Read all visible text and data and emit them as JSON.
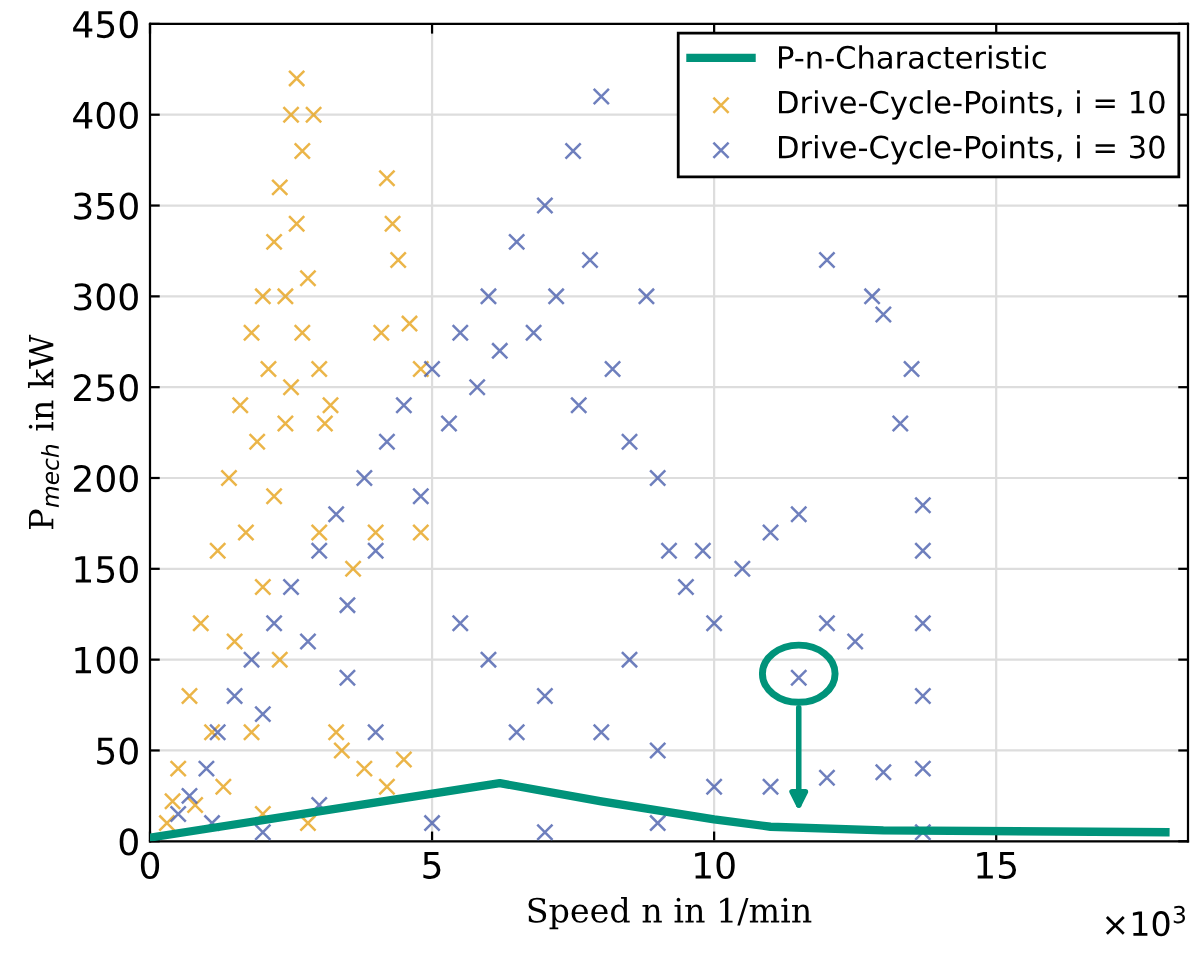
{
  "chart_data": {
    "type": "scatter",
    "xlabel": "Speed n in 1/min",
    "ylabel": "P$_{mech}$ in kW",
    "annotations": [
      "×10$^{3}$"
    ],
    "xlim": [
      0,
      18.4
    ],
    "ylim": [
      0,
      450
    ],
    "xticks": [
      0,
      5,
      10,
      15
    ],
    "yticks": [
      0,
      50,
      100,
      150,
      200,
      250,
      300,
      350,
      400,
      450
    ],
    "grid": true,
    "legend": "top right",
    "marker": "cross",
    "series": [
      {
        "name": "P-n-Characteristic",
        "type": "line",
        "color": "#00937a",
        "line_style": "solid",
        "marker": "none",
        "x": [
          0,
          6.2,
          8,
          10,
          11,
          13,
          18
        ],
        "values": [
          2,
          32,
          22,
          12,
          8,
          6,
          5
        ]
      },
      {
        "name": "Drive-Cycle-Points, i = 10",
        "color": "#e6a21a",
        "x": [
          0.3,
          0.5,
          0.7,
          0.9,
          1.1,
          1.2,
          1.4,
          1.5,
          1.6,
          1.7,
          1.8,
          1.9,
          2.0,
          2.0,
          2.1,
          2.2,
          2.2,
          2.3,
          2.4,
          2.4,
          2.5,
          2.5,
          2.6,
          2.6,
          2.7,
          2.7,
          2.8,
          2.9,
          3.0,
          3.1,
          3.2,
          2.3,
          1.8,
          1.3,
          0.8,
          0.4,
          4.2,
          4.3,
          4.4,
          4.6,
          4.8,
          4.1,
          3.4,
          3.8,
          4.2,
          4.5,
          2.0,
          2.8,
          3.3,
          4.0,
          3.6,
          3.0,
          4.8
        ],
        "values": [
          10,
          40,
          80,
          120,
          60,
          160,
          200,
          110,
          240,
          170,
          280,
          220,
          300,
          140,
          260,
          330,
          190,
          360,
          300,
          230,
          400,
          250,
          420,
          340,
          380,
          280,
          310,
          400,
          260,
          230,
          240,
          100,
          60,
          30,
          20,
          22,
          365,
          340,
          320,
          285,
          260,
          280,
          50,
          40,
          30,
          45,
          15,
          10,
          60,
          170,
          150,
          170,
          170
        ]
      },
      {
        "name": "Drive-Cycle-Points, i = 30",
        "color": "#4a5fad",
        "x": [
          0.5,
          0.7,
          1.0,
          1.2,
          1.5,
          1.8,
          2.0,
          2.2,
          2.5,
          2.8,
          3.0,
          3.3,
          3.5,
          3.8,
          4.0,
          4.2,
          4.5,
          4.8,
          5.0,
          5.3,
          5.5,
          5.8,
          6.0,
          6.2,
          6.5,
          6.8,
          7.0,
          7.2,
          7.5,
          7.8,
          8.0,
          8.2,
          8.5,
          8.8,
          9.0,
          9.2,
          9.5,
          10.0,
          10.5,
          11.0,
          11.5,
          12.0,
          12.5,
          12.8,
          13.0,
          13.3,
          13.5,
          11.5,
          12.0,
          6.0,
          7.0,
          8.0,
          9.0,
          10.0,
          11.0,
          12.0,
          13.0,
          13.7,
          13.7,
          13.7,
          13.7,
          13.7,
          13.7,
          3.0,
          5.0,
          7.0,
          9.0,
          2.0,
          1.1,
          6.5,
          4.0,
          5.5,
          8.5,
          9.8,
          7.6,
          3.5
        ],
        "values": [
          15,
          25,
          40,
          60,
          80,
          100,
          70,
          120,
          140,
          110,
          160,
          180,
          130,
          200,
          160,
          220,
          240,
          190,
          260,
          230,
          280,
          250,
          300,
          270,
          330,
          280,
          350,
          300,
          380,
          320,
          410,
          260,
          220,
          300,
          200,
          160,
          140,
          120,
          150,
          170,
          180,
          120,
          110,
          300,
          290,
          230,
          260,
          90,
          320,
          100,
          80,
          60,
          50,
          30,
          30,
          35,
          38,
          40,
          80,
          120,
          160,
          185,
          5,
          20,
          10,
          5,
          10,
          5,
          10,
          60,
          60,
          120,
          100,
          160,
          240,
          90
        ]
      }
    ]
  }
}
